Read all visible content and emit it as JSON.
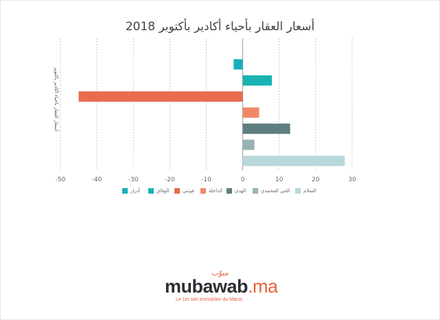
{
  "chart_data": {
    "type": "bar",
    "orientation": "horizontal",
    "title": "أسعار العقار بأحياء أكادير بأكتوبر 2018",
    "ylabel": "أسعار العقار بأحياء أكادير بأكتوبر",
    "xlim": [
      -50,
      30
    ],
    "x_ticks": [
      -50,
      -40,
      -30,
      -20,
      -10,
      0,
      10,
      20,
      30
    ],
    "grid": true,
    "legend_position": "bottom",
    "categories": [
      "أدرار",
      "الوفاق",
      "فونتي",
      "الداخلة",
      "الهدى",
      "الحي المحمدي",
      "السلام"
    ],
    "values": [
      -2.5,
      8,
      -45,
      4.5,
      13,
      3.2,
      28
    ],
    "colors": [
      "#17aebd",
      "#19b3b3",
      "#ea6c4d",
      "#f28867",
      "#5d7f81",
      "#96b2b4",
      "#b8d8dc"
    ]
  },
  "brand": {
    "name_main": "mubawab",
    "name_suffix": ".ma",
    "arabic": "مبوّب",
    "tagline": "Le 1er site immobilier du Maroc"
  }
}
